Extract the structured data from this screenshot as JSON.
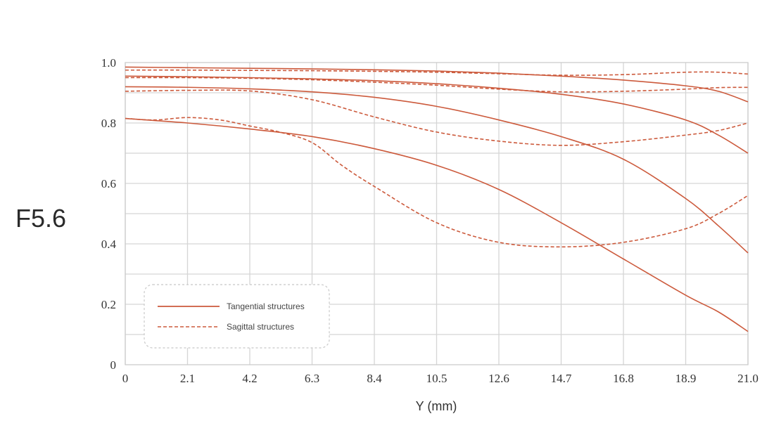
{
  "chart_data": {
    "type": "line",
    "side_label": "F5.6",
    "xlabel": "Y (mm)",
    "ylabel": "",
    "x_ticks": [
      "0",
      "2.1",
      "4.2",
      "6.3",
      "8.4",
      "10.5",
      "12.6",
      "14.7",
      "16.8",
      "18.9",
      "21.0"
    ],
    "y_ticks": [
      "0",
      "0.2",
      "0.4",
      "0.6",
      "0.8",
      "1.0"
    ],
    "xlim": [
      0,
      21
    ],
    "ylim": [
      0,
      1
    ],
    "grid": true,
    "legend_position": "bottom-left",
    "legend": [
      {
        "label": "Tangential structures",
        "style": "solid"
      },
      {
        "label": "Sagittal structures",
        "style": "dashed"
      }
    ],
    "line_color": "#cc5a3c",
    "series": [
      {
        "style": "solid",
        "x": [
          0,
          2.1,
          4.2,
          6.3,
          8.4,
          10.5,
          12.6,
          14.7,
          16.8,
          18.9,
          20.0,
          21.0
        ],
        "y": [
          0.985,
          0.983,
          0.981,
          0.979,
          0.976,
          0.972,
          0.965,
          0.955,
          0.942,
          0.923,
          0.905,
          0.87
        ]
      },
      {
        "style": "solid",
        "x": [
          0,
          2.1,
          4.2,
          6.3,
          8.4,
          10.5,
          12.6,
          14.7,
          16.8,
          18.9,
          20.0,
          21.0
        ],
        "y": [
          0.955,
          0.953,
          0.95,
          0.946,
          0.94,
          0.93,
          0.915,
          0.895,
          0.863,
          0.81,
          0.76,
          0.7
        ]
      },
      {
        "style": "solid",
        "x": [
          0,
          2.1,
          4.2,
          6.3,
          8.4,
          10.5,
          12.6,
          14.7,
          16.8,
          18.9,
          20.0,
          21.0
        ],
        "y": [
          0.92,
          0.918,
          0.913,
          0.903,
          0.885,
          0.855,
          0.81,
          0.755,
          0.68,
          0.55,
          0.46,
          0.37
        ]
      },
      {
        "style": "solid",
        "x": [
          0,
          2.1,
          4.2,
          6.3,
          8.4,
          10.5,
          12.6,
          14.7,
          16.8,
          18.9,
          20.0,
          21.0
        ],
        "y": [
          0.815,
          0.8,
          0.78,
          0.755,
          0.715,
          0.66,
          0.58,
          0.47,
          0.35,
          0.23,
          0.175,
          0.11
        ]
      },
      {
        "style": "dashed",
        "x": [
          0,
          2.1,
          4.2,
          6.3,
          8.4,
          10.5,
          12.6,
          14.7,
          16.8,
          18.9,
          20.0,
          21.0
        ],
        "y": [
          0.975,
          0.975,
          0.974,
          0.973,
          0.971,
          0.968,
          0.963,
          0.958,
          0.96,
          0.968,
          0.968,
          0.962
        ]
      },
      {
        "style": "dashed",
        "x": [
          0,
          2.1,
          4.2,
          6.3,
          8.4,
          10.5,
          12.6,
          14.7,
          16.8,
          18.9,
          20.0,
          21.0
        ],
        "y": [
          0.95,
          0.95,
          0.948,
          0.943,
          0.935,
          0.925,
          0.912,
          0.903,
          0.905,
          0.912,
          0.917,
          0.918
        ]
      },
      {
        "style": "dashed",
        "x": [
          0,
          2.1,
          4.2,
          6.3,
          8.4,
          10.5,
          12.6,
          14.7,
          16.8,
          18.9,
          20.0,
          21.0
        ],
        "y": [
          0.905,
          0.908,
          0.906,
          0.877,
          0.82,
          0.77,
          0.74,
          0.726,
          0.738,
          0.76,
          0.775,
          0.8
        ]
      },
      {
        "style": "dashed",
        "x": [
          0,
          1.0,
          2.1,
          3.2,
          4.2,
          5.2,
          6.3,
          7.3,
          8.4,
          10.5,
          12.6,
          14.7,
          16.8,
          18.9,
          20.0,
          21.0
        ],
        "y": [
          0.815,
          0.81,
          0.818,
          0.81,
          0.79,
          0.77,
          0.735,
          0.66,
          0.59,
          0.47,
          0.405,
          0.39,
          0.405,
          0.45,
          0.5,
          0.56
        ]
      }
    ]
  }
}
